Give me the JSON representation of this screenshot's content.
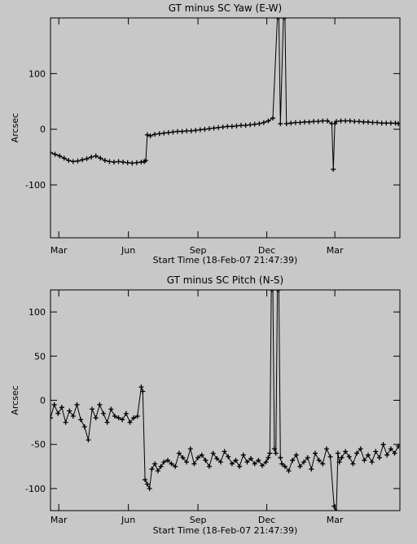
{
  "chart_data": [
    {
      "type": "line",
      "title": "GT minus SC Yaw (E-W)",
      "xlabel": "Start Time (18-Feb-07 21:47:39)",
      "ylabel": "Arcsec",
      "xlim": [
        0,
        462
      ],
      "ylim": [
        -195,
        200
      ],
      "xticks": [
        {
          "label": "Mar",
          "x": 11
        },
        {
          "label": "Jun",
          "x": 103
        },
        {
          "label": "Sep",
          "x": 195
        },
        {
          "label": "Dec",
          "x": 286
        },
        {
          "label": "Mar",
          "x": 376
        }
      ],
      "yticks": [
        -100,
        0,
        100
      ],
      "grid": false,
      "series": [
        {
          "marker": "plus",
          "x": [
            0,
            6,
            12,
            18,
            24,
            30,
            36,
            42,
            48,
            54,
            60,
            66,
            72,
            78,
            84,
            90,
            96,
            102,
            108,
            114,
            120,
            124,
            126,
            128,
            132,
            138,
            144,
            150,
            156,
            162,
            168,
            174,
            180,
            186,
            192,
            198,
            204,
            210,
            216,
            222,
            228,
            234,
            240,
            246,
            252,
            258,
            264,
            270,
            276,
            282,
            288,
            294,
            300,
            302,
            304,
            308,
            310,
            312,
            318,
            324,
            330,
            336,
            342,
            348,
            354,
            360,
            366,
            372,
            374,
            376,
            378,
            384,
            390,
            396,
            402,
            408,
            414,
            420,
            426,
            432,
            438,
            444,
            450,
            456,
            460
          ],
          "y": [
            -42,
            -45,
            -48,
            -52,
            -56,
            -58,
            -57,
            -55,
            -53,
            -50,
            -48,
            -52,
            -56,
            -58,
            -59,
            -58,
            -59,
            -60,
            -61,
            -60,
            -59,
            -58,
            -56,
            -10,
            -12,
            -9,
            -8,
            -7,
            -6,
            -5,
            -4,
            -4,
            -3,
            -3,
            -2,
            -1,
            0,
            1,
            2,
            3,
            4,
            5,
            5,
            6,
            7,
            7,
            8,
            9,
            10,
            12,
            15,
            20,
            200,
            200,
            10,
            200,
            200,
            10,
            11,
            12,
            12,
            13,
            13,
            14,
            14,
            15,
            15,
            10,
            -72,
            10,
            14,
            15,
            15,
            15,
            14,
            14,
            13,
            13,
            12,
            12,
            11,
            11,
            11,
            11,
            10
          ]
        }
      ]
    },
    {
      "type": "line",
      "title": "GT minus SC Pitch (N-S)",
      "xlabel": "Start Time (18-Feb-07 21:47:39)",
      "ylabel": "Arcsec",
      "xlim": [
        0,
        462
      ],
      "ylim": [
        -125,
        125
      ],
      "xticks": [
        {
          "label": "Mar",
          "x": 11
        },
        {
          "label": "Jun",
          "x": 103
        },
        {
          "label": "Sep",
          "x": 195
        },
        {
          "label": "Dec",
          "x": 286
        },
        {
          "label": "Mar",
          "x": 376
        }
      ],
      "yticks": [
        -100,
        -50,
        0,
        50,
        100
      ],
      "grid": false,
      "series": [
        {
          "marker": "plus",
          "x": [
            0,
            5,
            10,
            15,
            20,
            25,
            30,
            35,
            40,
            45,
            50,
            55,
            60,
            65,
            70,
            75,
            80,
            85,
            90,
            95,
            100,
            105,
            110,
            115,
            120,
            122,
            125,
            128,
            131,
            134,
            138,
            142,
            146,
            150,
            155,
            160,
            165,
            170,
            175,
            180,
            185,
            190,
            195,
            200,
            205,
            210,
            215,
            220,
            225,
            230,
            235,
            240,
            245,
            250,
            255,
            260,
            265,
            270,
            275,
            280,
            285,
            288,
            290,
            292,
            294,
            296,
            298,
            300,
            302,
            304,
            306,
            310,
            315,
            320,
            325,
            330,
            335,
            340,
            345,
            350,
            355,
            360,
            365,
            370,
            375,
            378,
            380,
            382,
            385,
            390,
            395,
            400,
            405,
            410,
            415,
            420,
            425,
            430,
            435,
            440,
            445,
            450,
            455,
            460
          ],
          "y": [
            -20,
            -5,
            -15,
            -8,
            -25,
            -12,
            -18,
            -5,
            -22,
            -30,
            -45,
            -10,
            -20,
            -5,
            -15,
            -25,
            -10,
            -18,
            -20,
            -22,
            -15,
            -25,
            -20,
            -18,
            15,
            10,
            -90,
            -95,
            -100,
            -78,
            -72,
            -80,
            -75,
            -70,
            -68,
            -72,
            -75,
            -60,
            -65,
            -70,
            -55,
            -72,
            -65,
            -62,
            -68,
            -75,
            -60,
            -66,
            -70,
            -58,
            -64,
            -72,
            -68,
            -75,
            -62,
            -70,
            -66,
            -72,
            -68,
            -74,
            -70,
            -65,
            -60,
            125,
            125,
            -55,
            -60,
            125,
            125,
            -65,
            -72,
            -75,
            -80,
            -68,
            -62,
            -75,
            -70,
            -65,
            -78,
            -60,
            -68,
            -72,
            -55,
            -64,
            -120,
            -125,
            -60,
            -70,
            -65,
            -58,
            -64,
            -72,
            -60,
            -55,
            -68,
            -62,
            -70,
            -58,
            -65,
            -50,
            -62,
            -55,
            -60,
            -52
          ]
        }
      ]
    }
  ]
}
